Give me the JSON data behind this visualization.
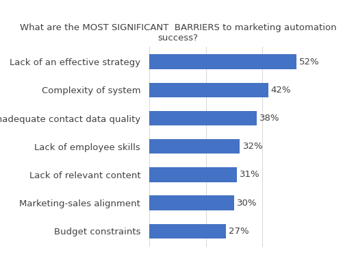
{
  "title": "What are the MOST SIGNIFICANT  BARRIERS to marketing automation\nsuccess?",
  "categories": [
    "Budget constraints",
    "Marketing-sales alignment",
    "Lack of relevant content",
    "Lack of employee skills",
    "Inadequate contact data quality",
    "Complexity of system",
    "Lack of an effective strategy"
  ],
  "values": [
    27,
    30,
    31,
    32,
    38,
    42,
    52
  ],
  "bar_color": "#4472C4",
  "label_color": "#404040",
  "title_color": "#404040",
  "background_color": "#ffffff",
  "xlim": [
    0,
    58
  ],
  "title_fontsize": 9.5,
  "label_fontsize": 9.5,
  "value_fontsize": 9.5,
  "bar_height": 0.52
}
